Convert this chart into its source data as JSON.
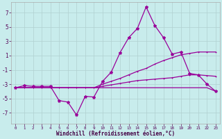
{
  "x": [
    0,
    1,
    2,
    3,
    4,
    5,
    6,
    7,
    8,
    9,
    10,
    11,
    12,
    13,
    14,
    15,
    16,
    17,
    18,
    19,
    20,
    21,
    22,
    23
  ],
  "line1": [
    -3.5,
    -3.2,
    -3.3,
    -3.3,
    -3.3,
    -5.3,
    -5.5,
    -7.3,
    -4.7,
    -4.8,
    -2.6,
    -1.3,
    1.4,
    3.5,
    4.8,
    7.8,
    5.2,
    3.5,
    1.2,
    1.5,
    -1.5,
    -1.7,
    -3.0,
    -4.0
  ],
  "line2": [
    -3.5,
    -3.5,
    -3.5,
    -3.5,
    -3.5,
    -3.5,
    -3.5,
    -3.5,
    -3.5,
    -3.5,
    -3.0,
    -2.6,
    -2.2,
    -1.7,
    -1.2,
    -0.8,
    -0.2,
    0.3,
    0.7,
    1.1,
    1.3,
    1.5,
    1.5,
    1.5
  ],
  "line3": [
    -3.5,
    -3.5,
    -3.5,
    -3.5,
    -3.5,
    -3.5,
    -3.5,
    -3.5,
    -3.5,
    -3.5,
    -3.3,
    -3.1,
    -2.9,
    -2.7,
    -2.5,
    -2.4,
    -2.3,
    -2.2,
    -2.1,
    -1.9,
    -1.7,
    -1.7,
    -1.8,
    -1.9
  ],
  "line4": [
    -3.5,
    -3.5,
    -3.5,
    -3.5,
    -3.5,
    -3.5,
    -3.5,
    -3.5,
    -3.5,
    -3.5,
    -3.5,
    -3.5,
    -3.5,
    -3.5,
    -3.5,
    -3.5,
    -3.5,
    -3.5,
    -3.5,
    -3.5,
    -3.5,
    -3.5,
    -3.5,
    -4.0
  ],
  "line_color": "#990099",
  "bg_color": "#c8ecec",
  "grid_color": "#b0d0d0",
  "xlabel": "Windchill (Refroidissement éolien,°C)",
  "ylim": [
    -8.5,
    8.5
  ],
  "xlim": [
    -0.5,
    23.5
  ],
  "yticks": [
    -7,
    -5,
    -3,
    -1,
    1,
    3,
    5,
    7
  ],
  "xticks": [
    0,
    1,
    2,
    3,
    4,
    5,
    6,
    7,
    8,
    9,
    10,
    11,
    12,
    13,
    14,
    15,
    16,
    17,
    18,
    19,
    20,
    21,
    22,
    23
  ]
}
